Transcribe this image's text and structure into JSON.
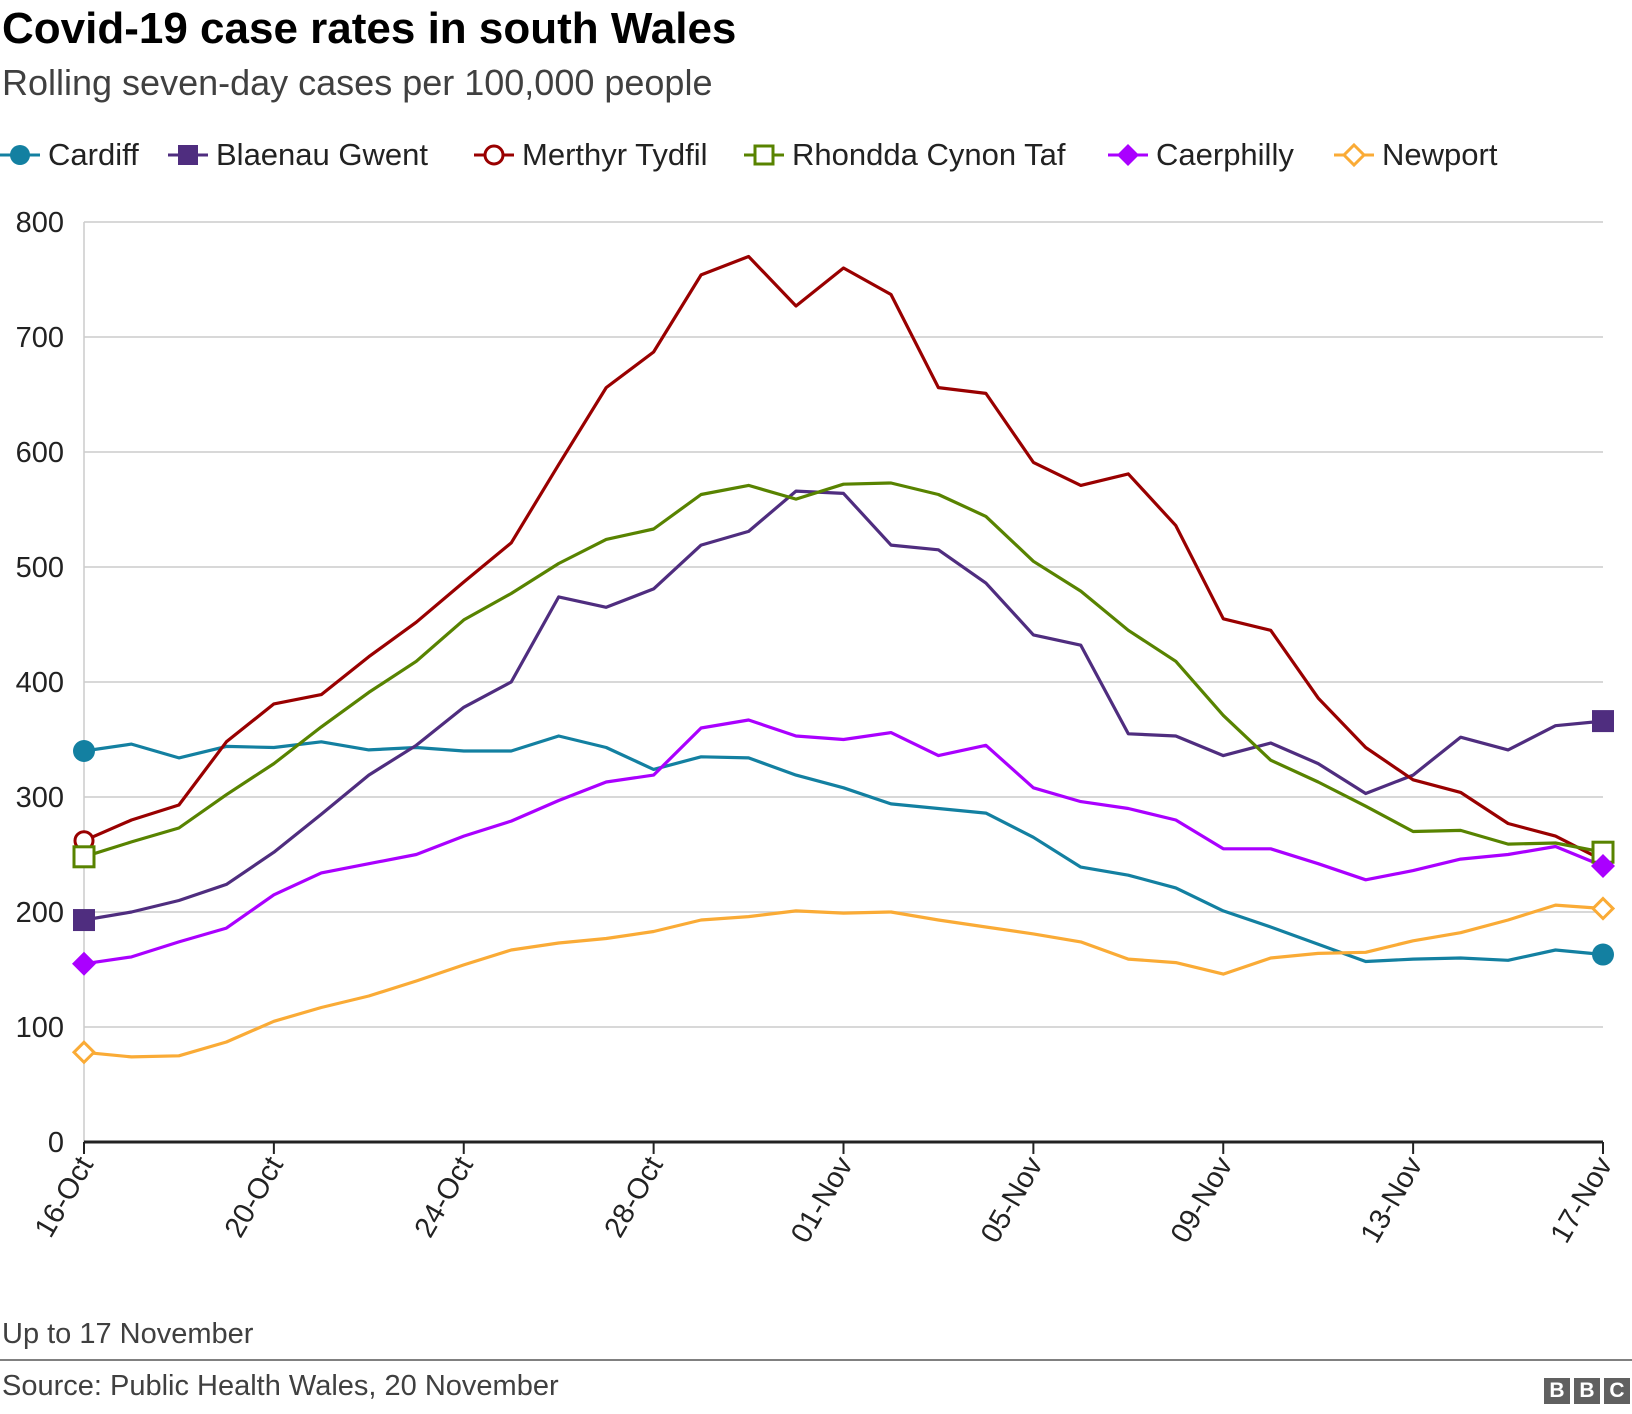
{
  "chart_data": {
    "type": "line",
    "title": "Covid-19 case rates in south Wales",
    "subtitle": "Rolling seven-day cases per 100,000 people",
    "xlabel": "",
    "ylabel": "",
    "ylim": [
      0,
      800
    ],
    "yticks": [
      0,
      100,
      200,
      300,
      400,
      500,
      600,
      700,
      800
    ],
    "grid": true,
    "legend_position": "top",
    "x_tick_labels": [
      "16-Oct",
      "20-Oct",
      "24-Oct",
      "28-Oct",
      "01-Nov",
      "05-Nov",
      "09-Nov",
      "13-Nov",
      "17-Nov"
    ],
    "x": [
      "16-Oct",
      "17-Oct",
      "18-Oct",
      "19-Oct",
      "20-Oct",
      "21-Oct",
      "22-Oct",
      "23-Oct",
      "24-Oct",
      "25-Oct",
      "26-Oct",
      "27-Oct",
      "28-Oct",
      "29-Oct",
      "30-Oct",
      "31-Oct",
      "01-Nov",
      "02-Nov",
      "03-Nov",
      "04-Nov",
      "05-Nov",
      "06-Nov",
      "07-Nov",
      "08-Nov",
      "09-Nov",
      "10-Nov",
      "11-Nov",
      "12-Nov",
      "13-Nov",
      "14-Nov",
      "15-Nov",
      "16-Nov",
      "17-Nov"
    ],
    "series": [
      {
        "name": "Cardiff",
        "color": "#1380A1",
        "marker": "circle-filled",
        "values": [
          340,
          346,
          334,
          344,
          343,
          348,
          341,
          343,
          340,
          340,
          353,
          343,
          324,
          335,
          334,
          319,
          308,
          294,
          290,
          286,
          265,
          239,
          232,
          221,
          201,
          187,
          172,
          157,
          159,
          160,
          158,
          167,
          163
        ]
      },
      {
        "name": "Blaenau Gwent",
        "color": "#4F2D7F",
        "marker": "square-filled",
        "values": [
          193,
          200,
          210,
          224,
          252,
          285,
          319,
          345,
          378,
          400,
          474,
          465,
          481,
          519,
          531,
          566,
          564,
          519,
          515,
          486,
          441,
          432,
          355,
          353,
          336,
          347,
          329,
          303,
          319,
          352,
          341,
          362,
          366
        ]
      },
      {
        "name": "Merthyr Tydfil",
        "color": "#990000",
        "marker": "circle-open",
        "values": [
          262,
          280,
          293,
          348,
          381,
          389,
          422,
          452,
          487,
          521,
          589,
          656,
          687,
          754,
          770,
          727,
          760,
          737,
          656,
          651,
          591,
          571,
          581,
          536,
          455,
          445,
          386,
          343,
          315,
          304,
          277,
          266,
          245
        ]
      },
      {
        "name": "Rhondda Cynon Taf",
        "color": "#588300",
        "marker": "square-open",
        "values": [
          248,
          261,
          273,
          302,
          329,
          361,
          391,
          418,
          454,
          477,
          503,
          524,
          533,
          563,
          571,
          559,
          572,
          573,
          563,
          544,
          505,
          479,
          445,
          418,
          371,
          332,
          313,
          292,
          270,
          271,
          259,
          260,
          252
        ]
      },
      {
        "name": "Caerphilly",
        "color": "#AA00FF",
        "marker": "diamond-filled",
        "values": [
          155,
          161,
          174,
          186,
          215,
          234,
          242,
          250,
          266,
          279,
          297,
          313,
          319,
          360,
          367,
          353,
          350,
          356,
          336,
          345,
          308,
          296,
          290,
          280,
          255,
          255,
          242,
          228,
          236,
          246,
          250,
          257,
          240
        ]
      },
      {
        "name": "Newport",
        "color": "#FAAB36",
        "marker": "diamond-open",
        "values": [
          78,
          74,
          75,
          87,
          105,
          117,
          127,
          140,
          154,
          167,
          173,
          177,
          183,
          193,
          196,
          201,
          199,
          200,
          193,
          187,
          181,
          174,
          159,
          156,
          146,
          160,
          164,
          165,
          175,
          182,
          193,
          206,
          203
        ]
      }
    ]
  },
  "footer": {
    "note": "Up to 17 November",
    "source": "Source: Public Health Wales, 20 November",
    "logo_letters": [
      "B",
      "B",
      "C"
    ]
  }
}
